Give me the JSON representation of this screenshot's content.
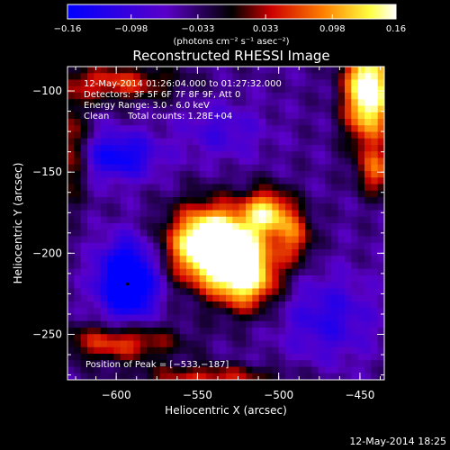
{
  "chart_data": {
    "type": "heatmap",
    "title": "Reconstructed RHESSI Image",
    "xlabel": "Heliocentric X (arcsec)",
    "ylabel": "Heliocentric Y (arcsec)",
    "xlim": [
      -630,
      -435
    ],
    "ylim": [
      -278,
      -85
    ],
    "xticks": [
      -600,
      -550,
      -500,
      -450
    ],
    "yticks": [
      -100,
      -150,
      -200,
      -250
    ],
    "colorbar": {
      "min": -0.16,
      "max": 0.16,
      "ticks": [
        "-0.16",
        "-0.098",
        "-0.033",
        "0.033",
        "0.098",
        "0.16"
      ],
      "label": "(photons cm⁻² s⁻¹ asec⁻²)",
      "colormap": "blue-purple-red-orange-yellow-white"
    },
    "annotations": {
      "time_range": "12-May-2014 01:26:04.000 to 01:27:32.000",
      "detectors": "Detectors: 3F 5F 6F 7F 8F 9F, Att 0",
      "energy_range": "Energy Range: 3.0 - 6.0 keV",
      "method": "Clean",
      "total_counts": "Total counts: 1.28E+04",
      "peak_position": "Position of Peak = [-533,-187]"
    },
    "peak": {
      "x": -533,
      "y": -187
    },
    "marker": {
      "x": -593,
      "y": -219
    },
    "features": [
      {
        "x": -540,
        "y": -195,
        "sx": 18,
        "sy": 16,
        "amp": 0.3
      },
      {
        "x": -520,
        "y": -215,
        "sx": 14,
        "sy": 14,
        "amp": 0.18
      },
      {
        "x": -507,
        "y": -175,
        "sx": 10,
        "sy": 10,
        "amp": 0.16
      },
      {
        "x": -490,
        "y": -190,
        "sx": 8,
        "sy": 12,
        "amp": 0.1
      },
      {
        "x": -445,
        "y": -100,
        "sx": 10,
        "sy": 22,
        "amp": 0.24
      },
      {
        "x": -440,
        "y": -150,
        "sx": 8,
        "sy": 10,
        "amp": 0.1
      },
      {
        "x": -600,
        "y": -95,
        "sx": 26,
        "sy": 8,
        "amp": 0.1
      },
      {
        "x": -628,
        "y": -135,
        "sx": 7,
        "sy": 22,
        "amp": 0.09
      },
      {
        "x": -598,
        "y": -255,
        "sx": 25,
        "sy": 8,
        "amp": 0.11
      },
      {
        "x": -542,
        "y": -276,
        "sx": 30,
        "sy": 5,
        "amp": 0.09
      },
      {
        "x": -593,
        "y": -217,
        "sx": 12,
        "sy": 16,
        "amp": -0.2
      },
      {
        "x": -598,
        "y": -140,
        "sx": 16,
        "sy": 10,
        "amp": -0.11
      },
      {
        "x": -470,
        "y": -240,
        "sx": 20,
        "sy": 18,
        "amp": -0.07
      },
      {
        "x": -535,
        "y": -125,
        "sx": 18,
        "sy": 12,
        "amp": -0.05
      }
    ],
    "background": -0.045
  },
  "footer": {
    "timestamp": "12-May-2014 18:25"
  }
}
